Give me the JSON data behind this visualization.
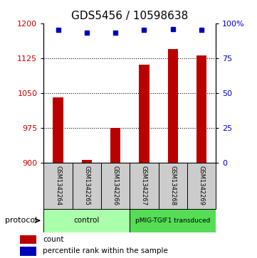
{
  "title": "GDS5456 / 10598638",
  "samples": [
    "GSM1342264",
    "GSM1342265",
    "GSM1342266",
    "GSM1342267",
    "GSM1342268",
    "GSM1342269"
  ],
  "counts": [
    1040,
    905,
    975,
    1110,
    1145,
    1130
  ],
  "percentile_ranks": [
    95,
    93,
    93,
    95,
    96,
    95
  ],
  "ylim_left": [
    900,
    1200
  ],
  "ylim_right": [
    0,
    100
  ],
  "yticks_left": [
    900,
    975,
    1050,
    1125,
    1200
  ],
  "yticks_right": [
    0,
    25,
    50,
    75,
    100
  ],
  "ytick_labels_right": [
    "0",
    "25",
    "50",
    "75",
    "100%"
  ],
  "bar_color": "#bb0000",
  "dot_color": "#0000bb",
  "protocol_groups": [
    {
      "label": "control",
      "start": 0,
      "end": 2,
      "color": "#aaffaa"
    },
    {
      "label": "pMIG-TGIF1 transduced",
      "start": 3,
      "end": 5,
      "color": "#55dd55"
    }
  ],
  "protocol_label": "protocol",
  "legend_items": [
    {
      "color": "#bb0000",
      "label": "count"
    },
    {
      "color": "#0000bb",
      "label": "percentile rank within the sample"
    }
  ],
  "left_ylabel_color": "#cc0000",
  "right_ylabel_color": "#0000cc",
  "title_fontsize": 11,
  "tick_fontsize": 8,
  "label_fontsize": 7,
  "legend_fontsize": 7.5
}
